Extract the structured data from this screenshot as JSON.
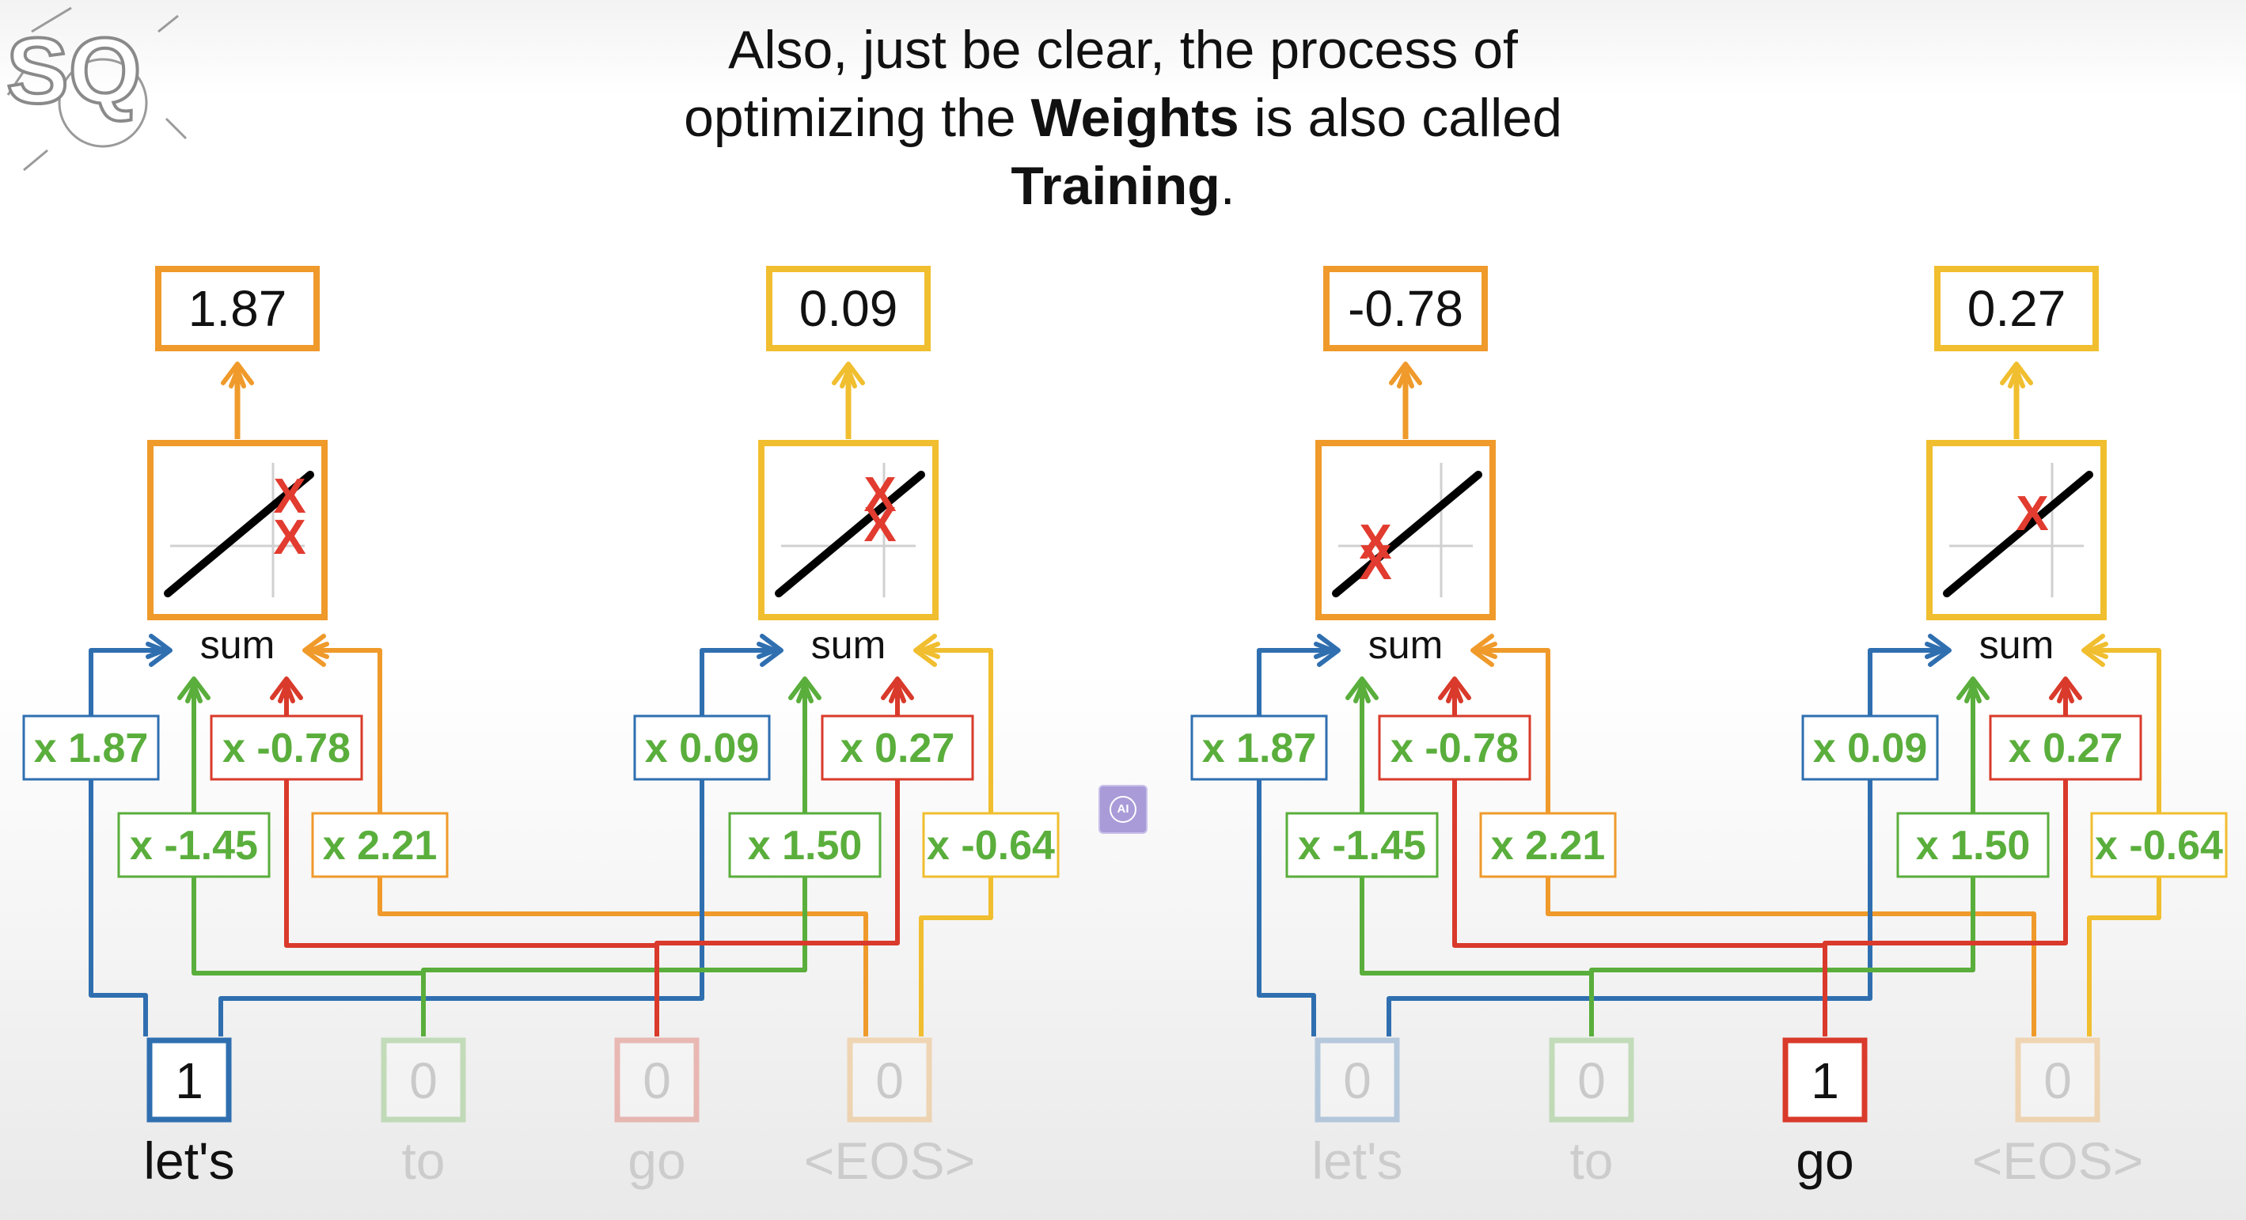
{
  "caption": {
    "line1": "Also, just be clear, the process of",
    "line2_pre": "optimizing the ",
    "line2_bold": "Weights",
    "line2_post": " is also called",
    "line3_bold": "Training",
    "line3_post": "."
  },
  "logo_text": "SQ",
  "sum_label": "sum",
  "panels": [
    {
      "words": [
        "let's",
        "to",
        "go",
        "<EOS>"
      ],
      "inputs": [
        "1",
        "0",
        "0",
        "0"
      ],
      "active": [
        true,
        false,
        false,
        false
      ],
      "neurons": [
        {
          "output": "1.87",
          "w_top": [
            "x 1.87",
            "x -0.78"
          ],
          "w_bottom": [
            "x -1.45",
            "x 2.21"
          ]
        },
        {
          "output": "0.09",
          "w_top": [
            "x 0.09",
            "x 0.27"
          ],
          "w_bottom": [
            "x 1.50",
            "x -0.64"
          ]
        }
      ]
    },
    {
      "words": [
        "let's",
        "to",
        "go",
        "<EOS>"
      ],
      "inputs": [
        "0",
        "0",
        "1",
        "0"
      ],
      "active": [
        false,
        false,
        true,
        false
      ],
      "neurons": [
        {
          "output": "-0.78",
          "w_top": [
            "x 1.87",
            "x -0.78"
          ],
          "w_bottom": [
            "x -1.45",
            "x 2.21"
          ]
        },
        {
          "output": "0.27",
          "w_top": [
            "x 0.09",
            "x 0.27"
          ],
          "w_bottom": [
            "x 1.50",
            "x -0.64"
          ]
        }
      ]
    }
  ],
  "colors": {
    "blue": "#2f6fb0",
    "green": "#5aae3c",
    "red": "#d93a2b",
    "orange": "#ef9a2b",
    "yellow": "#f0be2f",
    "text": "#111111",
    "ghost": "#c9c9c9"
  }
}
